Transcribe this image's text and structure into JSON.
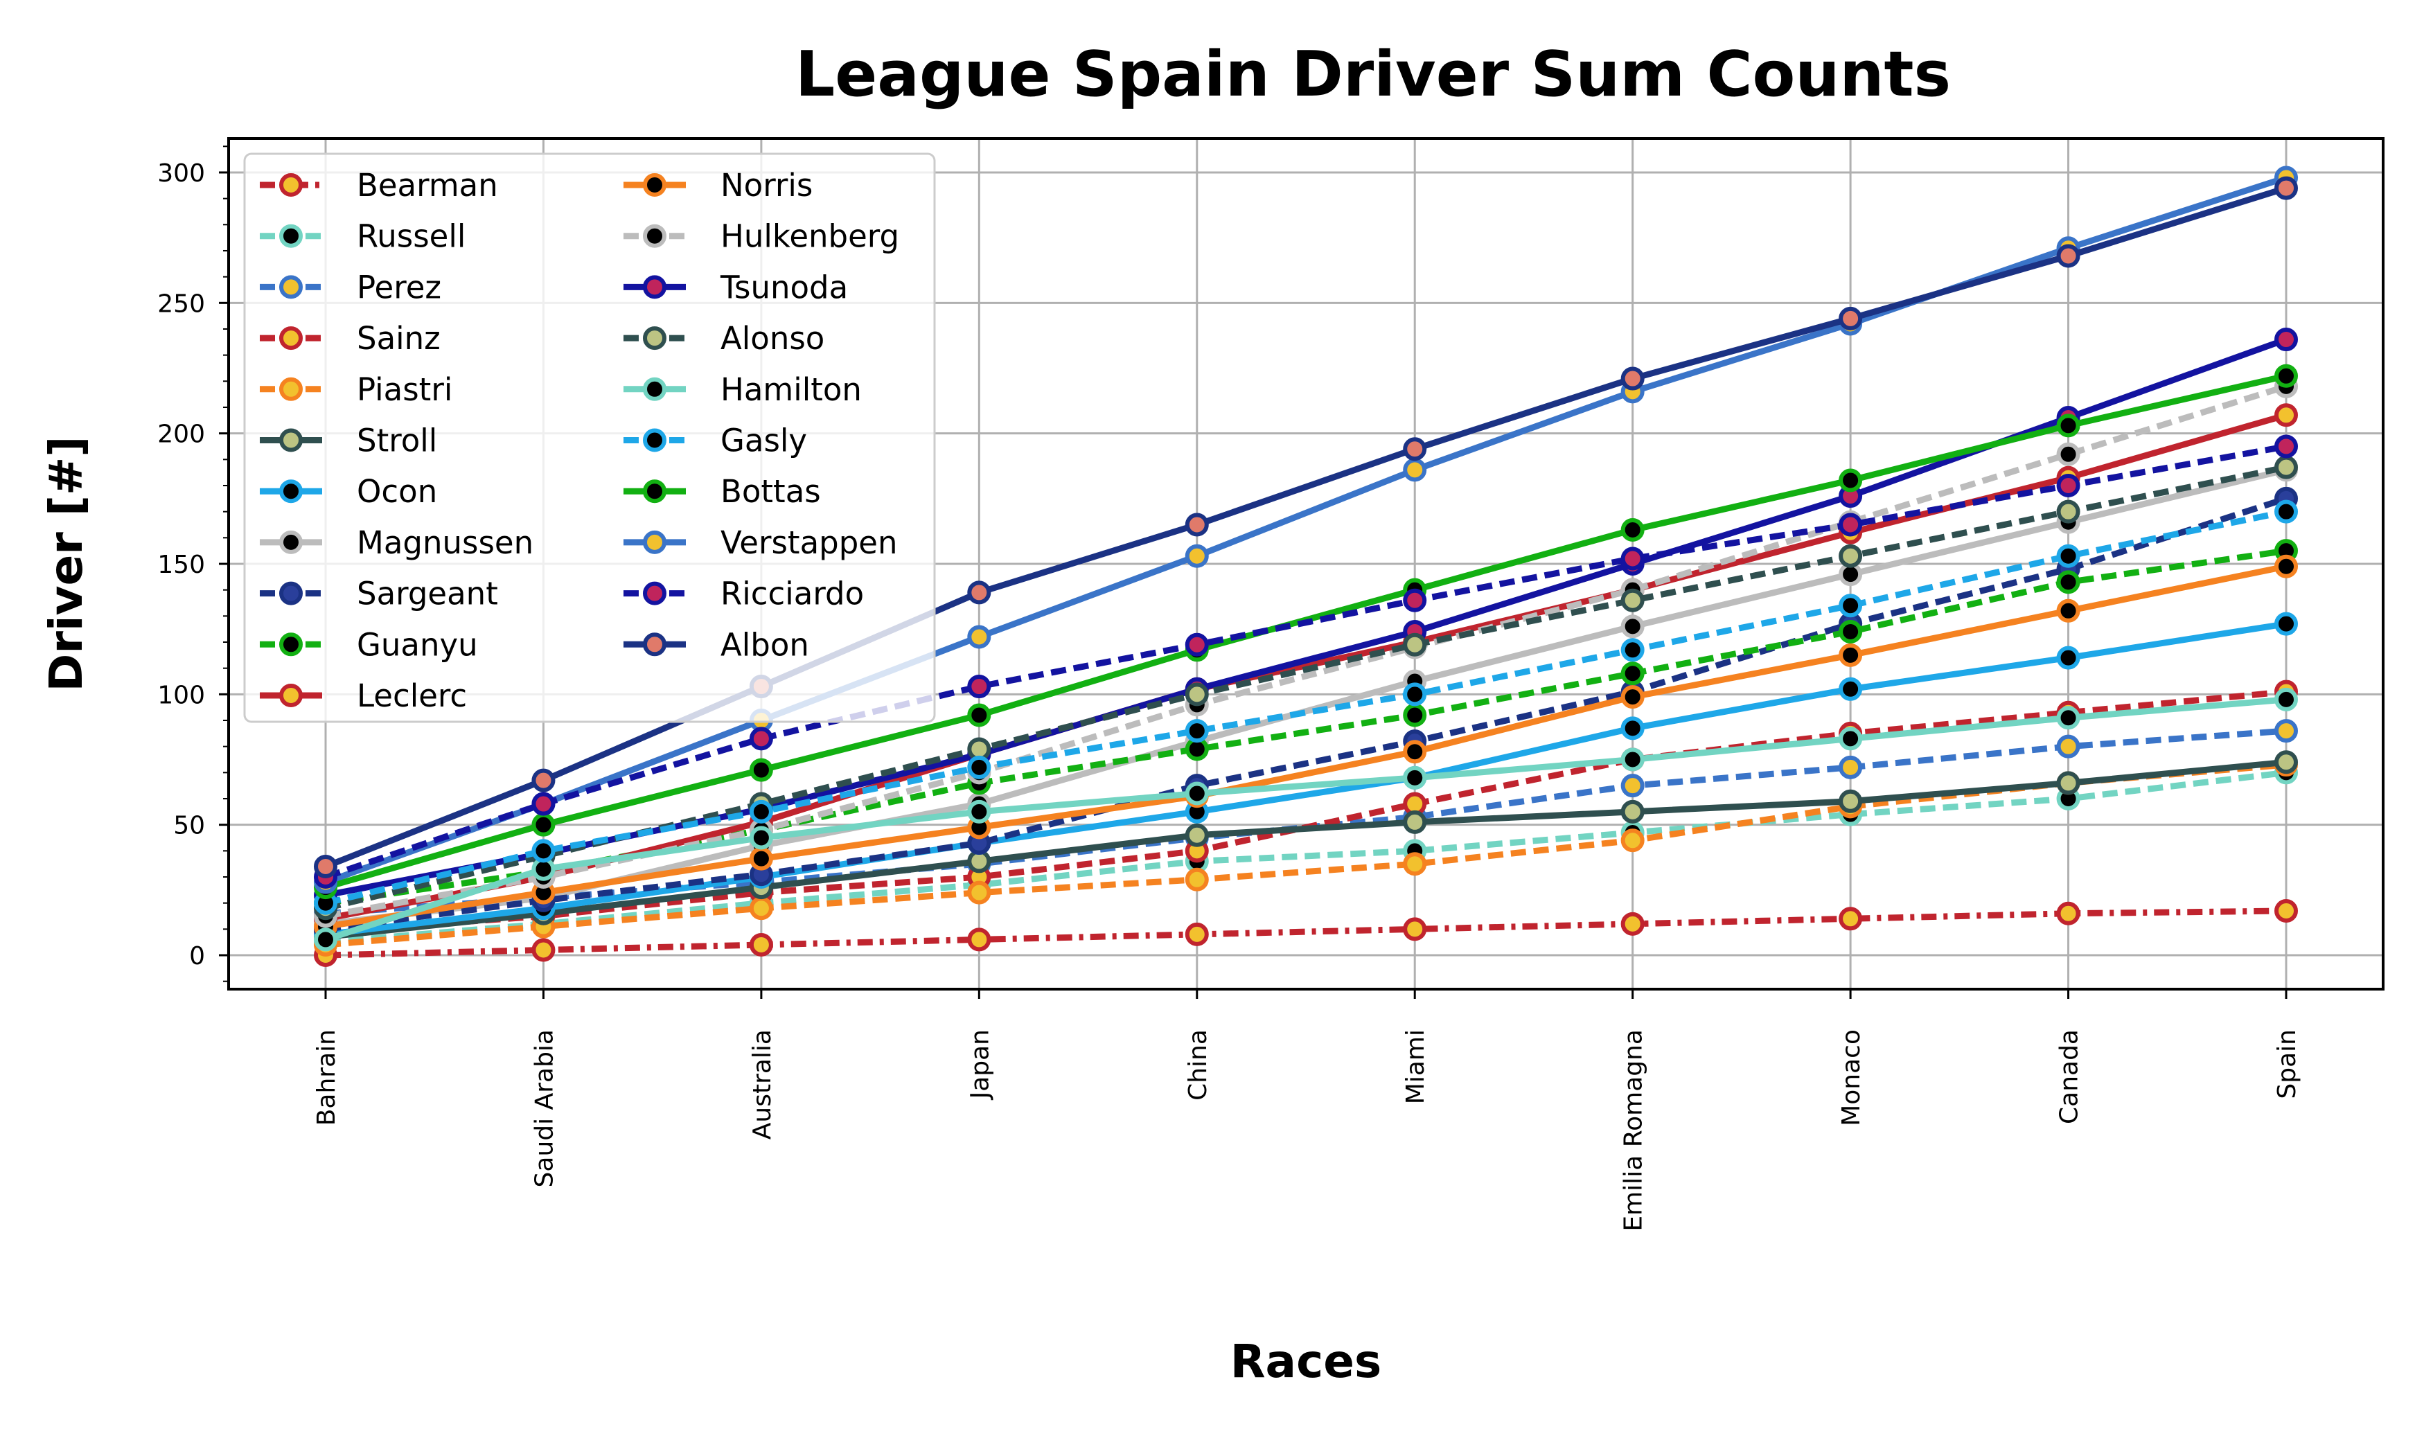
{
  "chart_data": {
    "type": "line",
    "title": "League Spain Driver Sum Counts",
    "xlabel": "Races",
    "ylabel": "Driver [#]",
    "categories": [
      "Bahrain",
      "Saudi Arabia",
      "Australia",
      "Japan",
      "China",
      "Miami",
      "Emilia Romagna",
      "Monaco",
      "Canada",
      "Spain"
    ],
    "yticks": [
      0,
      50,
      100,
      150,
      200,
      250,
      300
    ],
    "ylim": [
      -13,
      313
    ],
    "grid": true,
    "legend_position": "top-left",
    "legend_columns": 2,
    "series": [
      {
        "name": "Bearman",
        "values": [
          0,
          2,
          4,
          6,
          8,
          10,
          12,
          14,
          16,
          17
        ],
        "color": "#c0242e",
        "dash": "dashdot",
        "marker_face": "#f2c12e",
        "marker_edge": "#c0242e"
      },
      {
        "name": "Russell",
        "values": [
          5,
          12,
          20,
          27,
          36,
          40,
          47,
          54,
          60,
          70
        ],
        "color": "#72d4c2",
        "dash": "dashed",
        "marker_face": "#000000",
        "marker_edge": "#72d4c2"
      },
      {
        "name": "Perez",
        "values": [
          16,
          22,
          28,
          35,
          45,
          53,
          65,
          72,
          80,
          86
        ],
        "color": "#3a74c8",
        "dash": "dashed",
        "marker_face": "#f2c12e",
        "marker_edge": "#3a74c8"
      },
      {
        "name": "Sainz",
        "values": [
          9,
          15,
          24,
          30,
          40,
          58,
          75,
          85,
          93,
          101
        ],
        "color": "#c0242e",
        "dash": "dashed",
        "marker_face": "#f2c12e",
        "marker_edge": "#c0242e"
      },
      {
        "name": "Piastri",
        "values": [
          4,
          11,
          18,
          24,
          29,
          35,
          44,
          57,
          66,
          73
        ],
        "color": "#f58220",
        "dash": "dashed",
        "marker_face": "#f2c12e",
        "marker_edge": "#f58220"
      },
      {
        "name": "Stroll",
        "values": [
          7,
          16,
          26,
          36,
          46,
          51,
          55,
          59,
          66,
          74
        ],
        "color": "#2f4f4f",
        "dash": "solid",
        "marker_face": "#bcc483",
        "marker_edge": "#2f4f4f"
      },
      {
        "name": "Ocon",
        "values": [
          8,
          18,
          30,
          43,
          55,
          68,
          87,
          102,
          114,
          127
        ],
        "color": "#1ea7e8",
        "dash": "solid",
        "marker_face": "#000000",
        "marker_edge": "#1ea7e8"
      },
      {
        "name": "Magnussen",
        "values": [
          12,
          22,
          42,
          58,
          82,
          105,
          126,
          146,
          166,
          186
        ],
        "color": "#bcbcbc",
        "dash": "solid",
        "marker_face": "#000000",
        "marker_edge": "#bcbcbc"
      },
      {
        "name": "Sargeant",
        "values": [
          10,
          21,
          31,
          43,
          65,
          82,
          101,
          127,
          148,
          175
        ],
        "color": "#1b3284",
        "dash": "dashed",
        "marker_face": "#2a3f9b",
        "marker_edge": "#1b3284"
      },
      {
        "name": "Guanyu",
        "values": [
          20,
          32,
          48,
          66,
          79,
          92,
          108,
          124,
          143,
          155
        ],
        "color": "#12b012",
        "dash": "dashed",
        "marker_face": "#000000",
        "marker_edge": "#12b012"
      },
      {
        "name": "Leclerc",
        "values": [
          14,
          30,
          51,
          77,
          102,
          120,
          140,
          162,
          183,
          207
        ],
        "color": "#c0242e",
        "dash": "solid",
        "marker_face": "#f2c12e",
        "marker_edge": "#c0242e"
      },
      {
        "name": "Norris",
        "values": [
          11,
          24,
          37,
          49,
          61,
          78,
          99,
          115,
          132,
          149
        ],
        "color": "#f58220",
        "dash": "solid",
        "marker_face": "#000000",
        "marker_edge": "#f58220"
      },
      {
        "name": "Hulkenberg",
        "values": [
          15,
          30,
          48,
          70,
          96,
          118,
          140,
          166,
          192,
          218
        ],
        "color": "#bcbcbc",
        "dash": "dashed",
        "marker_face": "#000000",
        "marker_edge": "#bcbcbc"
      },
      {
        "name": "Tsunoda",
        "values": [
          23,
          39,
          56,
          77,
          102,
          124,
          150,
          176,
          206,
          236
        ],
        "color": "#1313a0",
        "dash": "solid",
        "marker_face": "#c0245c",
        "marker_edge": "#1313a0"
      },
      {
        "name": "Alonso",
        "values": [
          18,
          38,
          58,
          79,
          100,
          119,
          136,
          153,
          170,
          187
        ],
        "color": "#2f4f4f",
        "dash": "dashed",
        "marker_face": "#bcc483",
        "marker_edge": "#2f4f4f"
      },
      {
        "name": "Hamilton",
        "values": [
          6,
          33,
          45,
          55,
          62,
          68,
          75,
          83,
          91,
          98
        ],
        "color": "#72d4c2",
        "dash": "solid",
        "marker_face": "#000000",
        "marker_edge": "#72d4c2"
      },
      {
        "name": "Gasly",
        "values": [
          20,
          40,
          55,
          72,
          86,
          100,
          117,
          134,
          153,
          170
        ],
        "color": "#1ea7e8",
        "dash": "dashed",
        "marker_face": "#000000",
        "marker_edge": "#1ea7e8"
      },
      {
        "name": "Bottas",
        "values": [
          26,
          50,
          71,
          92,
          117,
          140,
          163,
          182,
          203,
          222
        ],
        "color": "#12b012",
        "dash": "solid",
        "marker_face": "#000000",
        "marker_edge": "#12b012"
      },
      {
        "name": "Verstappen",
        "values": [
          28,
          58,
          90,
          122,
          153,
          186,
          216,
          242,
          271,
          298
        ],
        "color": "#3a74c8",
        "dash": "solid",
        "marker_face": "#f2c12e",
        "marker_edge": "#3a74c8"
      },
      {
        "name": "Ricciardo",
        "values": [
          30,
          58,
          83,
          103,
          119,
          136,
          152,
          165,
          180,
          195
        ],
        "color": "#1313a0",
        "dash": "dashed",
        "marker_face": "#c0245c",
        "marker_edge": "#1313a0"
      },
      {
        "name": "Albon",
        "values": [
          34,
          67,
          103,
          139,
          165,
          194,
          221,
          244,
          268,
          294
        ],
        "color": "#1b3284",
        "dash": "solid",
        "marker_face": "#e07a6a",
        "marker_edge": "#1b3284"
      }
    ]
  }
}
